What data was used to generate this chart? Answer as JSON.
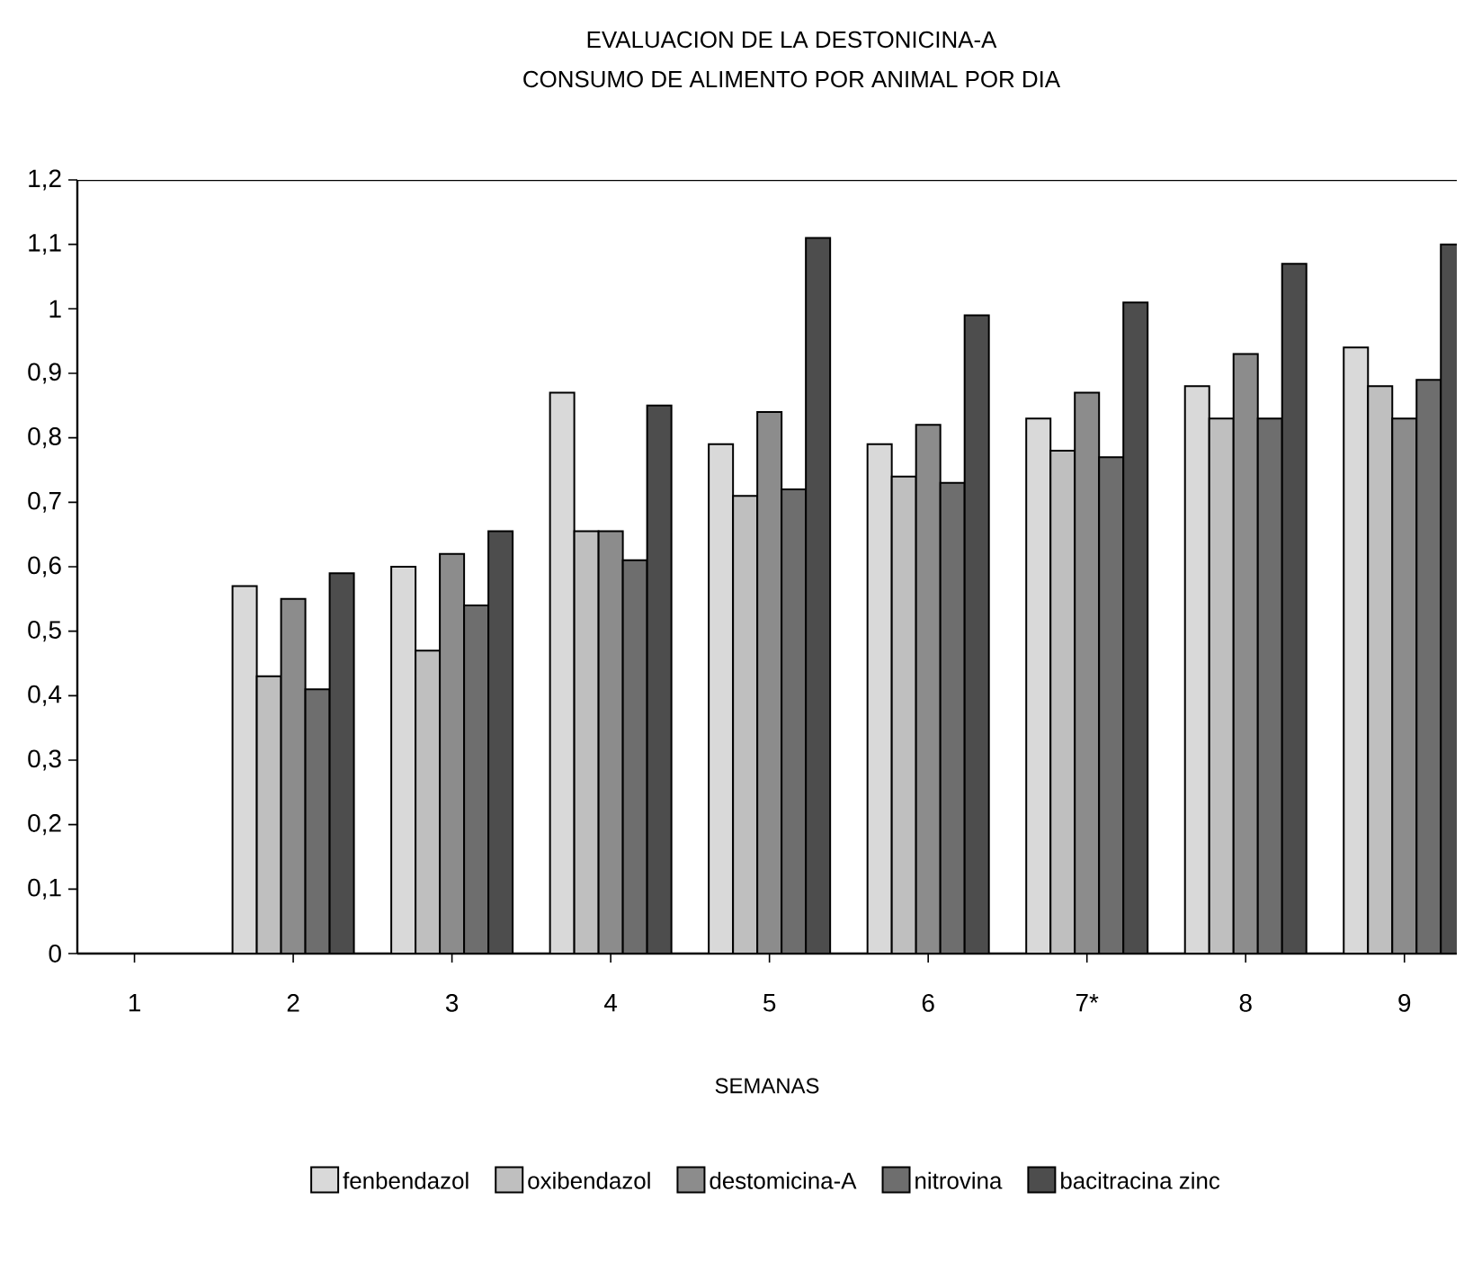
{
  "chart_data": {
    "type": "bar",
    "title": "EVALUACION DE LA DESTONICINA-A",
    "subtitle": "CONSUMO DE ALIMENTO POR ANIMAL POR DIA",
    "xlabel": "SEMANAS",
    "categories": [
      "1",
      "2",
      "3",
      "4",
      "5",
      "6",
      "7*",
      "8",
      "9"
    ],
    "series": [
      {
        "name": "fenbendazol",
        "color": "#d9d9d9",
        "values": [
          null,
          0.57,
          0.6,
          0.87,
          0.79,
          0.79,
          0.83,
          0.88,
          0.94
        ]
      },
      {
        "name": "oxibendazol",
        "color": "#bfbfbf",
        "values": [
          null,
          0.43,
          0.47,
          0.655,
          0.71,
          0.74,
          0.78,
          0.83,
          0.88
        ]
      },
      {
        "name": "destomicina-A",
        "color": "#8c8c8c",
        "values": [
          null,
          0.55,
          0.62,
          0.655,
          0.84,
          0.82,
          0.87,
          0.93,
          0.83
        ]
      },
      {
        "name": "nitrovina",
        "color": "#6e6e6e",
        "values": [
          null,
          0.41,
          0.54,
          0.61,
          0.72,
          0.73,
          0.77,
          0.83,
          0.89
        ]
      },
      {
        "name": "bacitracina zinc",
        "color": "#4d4d4d",
        "values": [
          null,
          0.59,
          0.655,
          0.85,
          1.11,
          0.99,
          1.01,
          1.07,
          1.1
        ]
      }
    ],
    "ylim": [
      0,
      1.2
    ],
    "yticks": [
      0,
      {
        "value": 0.1,
        "label": "0,1"
      },
      {
        "value": 0.2,
        "label": "0,2"
      },
      {
        "value": 0.3,
        "label": "0,3"
      },
      {
        "value": 0.4,
        "label": "0,4"
      },
      {
        "value": 0.5,
        "label": "0,5"
      },
      {
        "value": 0.6,
        "label": "0,6"
      },
      {
        "value": 0.7,
        "label": "0,7"
      },
      {
        "value": 0.8,
        "label": "0,8"
      },
      {
        "value": 0.9,
        "label": "0,9"
      },
      1,
      {
        "value": 1.1,
        "label": "1,1"
      },
      {
        "value": 1.2,
        "label": "1,2"
      }
    ],
    "grid": false,
    "legend": "bottom"
  }
}
